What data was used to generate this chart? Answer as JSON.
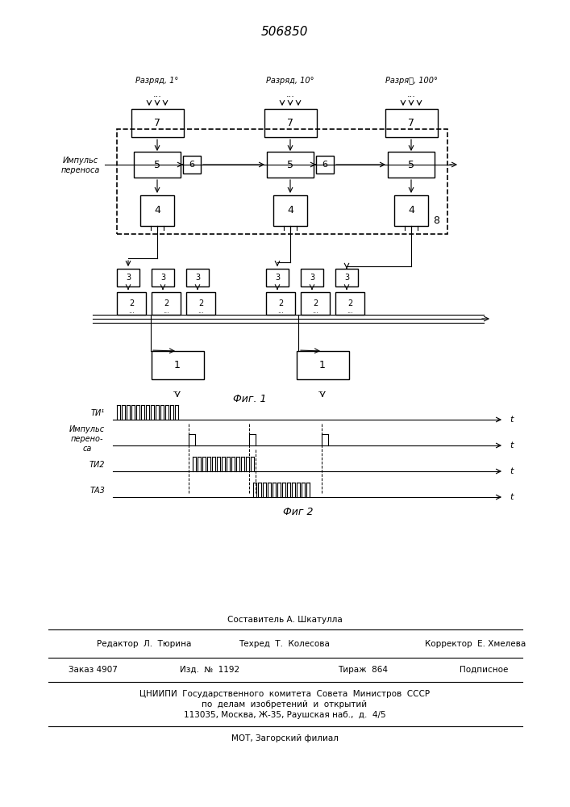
{
  "patent_number": "506850",
  "fig1_caption": "Фиг. 1",
  "fig2_caption": "Фиг 2",
  "label_razryad1": "Разряд, 1°",
  "label_razryad10": "Разряд, 10°",
  "label_razryad100": "Разряد, 100°",
  "label_impuls": "Импульс\nпереноса",
  "label_8": "8",
  "label_ti1": "ТИ¹",
  "label_impuls_per": "Импульс\nперено-\nса",
  "label_ti2": "ТИ2",
  "label_ti3": "ТА3",
  "label_t": "t",
  "footer_sostavitel": "Составитель А. Шкатулла",
  "footer_redaktor": "Редактор  Л.  Тюрина",
  "footer_tehred": "Техред  Т.  Колесова",
  "footer_korrektor": "Корректор  Е. Хмелева",
  "footer_zakaz": "Заказ 4907",
  "footer_izd": "Изд.  №  1192",
  "footer_tirazh": "Тираж  864",
  "footer_podpisnoe": "Подписное",
  "footer_cniip": "ЦНИИПИ  Государственного  комитета  Совета  Министров  СССР",
  "footer_po_delam": "по  делам  изобретений  и  открытий",
  "footer_address": "113035, Москва, Ж-35, Раушская наб.,  д.  4/5",
  "footer_mot": "МОТ, Загорский филиал",
  "bg_color": "#ffffff",
  "line_color": "#000000"
}
